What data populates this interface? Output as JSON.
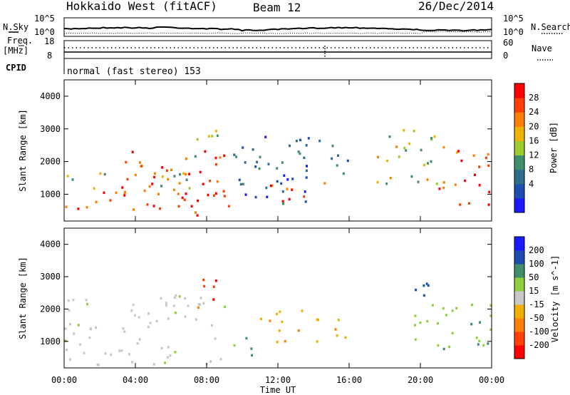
{
  "header": {
    "station": "Hokkaido West (fitACF)",
    "beam": "Beam 12",
    "date": "26/Dec/2014"
  },
  "status_panel": {
    "nsky_label": "N.Sky",
    "nsearch_label": "N.Search",
    "noise_ticks": [
      "10^5",
      "10^0"
    ],
    "freq_label": "Freq.",
    "freq_unit": "[MHz]",
    "freq_ticks": [
      "18",
      "8"
    ],
    "nave_label": "Nave",
    "nave_ticks": [
      "60",
      "0"
    ],
    "cpid_label": "CPID",
    "cpid_value": "normal (fast stereo) 153"
  },
  "colors": {
    "power_scale": [
      "#1a1aff",
      "#1c4fb0",
      "#2b6f8a",
      "#3f8f6a",
      "#9acd32",
      "#f0b400",
      "#ff8000",
      "#ff4000",
      "#ff0000"
    ],
    "velocity_scale": [
      "#1a1aff",
      "#1c4fb0",
      "#3f8f6a",
      "#90d040",
      "#c8c8c8",
      "#f0b000",
      "#ff8000",
      "#ff4000",
      "#ff0000"
    ]
  },
  "chart_data": [
    {
      "type": "heatmap",
      "title": "",
      "xlabel": "",
      "ylabel": "Slant Range [km]",
      "x_ticks": [
        "00:00",
        "04:00",
        "08:00",
        "12:00",
        "16:00",
        "20:00",
        "00:00"
      ],
      "y_ticks": [
        "1000",
        "2000",
        "3000",
        "4000"
      ],
      "ylim": [
        180,
        4500
      ],
      "grid": false,
      "colorbar": {
        "label": "Power [dB]",
        "ticks": [
          "28",
          "24",
          "20",
          "16",
          "12",
          "8",
          "4"
        ],
        "range": [
          0,
          30
        ]
      },
      "regions": [
        {
          "t0": 0.0,
          "t1": 9.3,
          "r0": 300,
          "r1": 1150,
          "level": "high"
        },
        {
          "t0": 0.0,
          "t1": 9.3,
          "r0": 1150,
          "r1": 1700,
          "level": "mid"
        },
        {
          "t0": 3.0,
          "t1": 9.3,
          "r0": 1000,
          "r1": 2400,
          "level": "high"
        },
        {
          "t0": 6.8,
          "t1": 9.0,
          "r0": 2000,
          "r1": 3000,
          "level": "mid"
        },
        {
          "t0": 9.3,
          "t1": 16.0,
          "r0": 700,
          "r1": 2800,
          "level": "low"
        },
        {
          "t0": 11.5,
          "t1": 15.5,
          "r0": 800,
          "r1": 1400,
          "level": "high"
        },
        {
          "t0": 17.5,
          "t1": 22.0,
          "r0": 1200,
          "r1": 3000,
          "level": "mid"
        },
        {
          "t0": 21.0,
          "t1": 24.0,
          "r0": 700,
          "r1": 2400,
          "level": "high"
        }
      ]
    },
    {
      "type": "heatmap",
      "title": "",
      "xlabel": "Time UT",
      "ylabel": "Slant Range [km]",
      "x_ticks": [
        "00:00",
        "04:00",
        "08:00",
        "12:00",
        "16:00",
        "20:00",
        "00:00"
      ],
      "y_ticks": [
        "1000",
        "2000",
        "3000",
        "4000"
      ],
      "ylim": [
        180,
        4500
      ],
      "grid": false,
      "colorbar": {
        "label": "Velocity [m s^-1]",
        "ticks": [
          "200",
          "100",
          "50",
          "15",
          "-15",
          "-50",
          "-100",
          "-200"
        ],
        "range": [
          -250,
          250
        ]
      },
      "regions": [
        {
          "t0": 0.0,
          "t1": 9.3,
          "r0": 300,
          "r1": 2500,
          "level": "zero"
        },
        {
          "t0": 7.0,
          "t1": 8.8,
          "r0": 2000,
          "r1": 3000,
          "level": "neg"
        },
        {
          "t0": 11.0,
          "t1": 16.0,
          "r0": 1000,
          "r1": 2000,
          "level": "negsm"
        },
        {
          "t0": 9.5,
          "t1": 11.5,
          "r0": 600,
          "r1": 1200,
          "level": "possm"
        },
        {
          "t0": 18.5,
          "t1": 20.5,
          "r0": 2200,
          "r1": 3000,
          "level": "pos"
        },
        {
          "t0": 19.5,
          "t1": 24.0,
          "r0": 700,
          "r1": 2400,
          "level": "possm"
        }
      ]
    }
  ]
}
